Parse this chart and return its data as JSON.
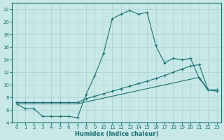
{
  "xlabel": "Humidex (Indice chaleur)",
  "ylabel": "",
  "xlim": [
    -0.5,
    23.5
  ],
  "ylim": [
    4,
    23
  ],
  "yticks": [
    4,
    6,
    8,
    10,
    12,
    14,
    16,
    18,
    20,
    22
  ],
  "xticks": [
    0,
    1,
    2,
    3,
    4,
    5,
    6,
    7,
    8,
    9,
    10,
    11,
    12,
    13,
    14,
    15,
    16,
    17,
    18,
    19,
    20,
    21,
    22,
    23
  ],
  "bg_color": "#c8e8e8",
  "grid_color": "#a8d0d0",
  "line_color": "#1a7070",
  "series1_x": [
    0,
    1,
    2,
    3,
    4,
    5,
    6,
    7,
    8,
    9,
    10,
    11,
    12,
    13,
    14,
    15,
    16,
    17,
    18,
    19,
    20,
    21,
    22,
    23
  ],
  "series1_y": [
    7.0,
    6.2,
    6.2,
    5.0,
    5.0,
    5.0,
    5.0,
    4.8,
    8.5,
    11.5,
    15.0,
    20.5,
    21.2,
    21.8,
    21.2,
    21.5,
    16.2,
    13.5,
    14.2,
    14.0,
    14.2,
    11.0,
    9.2,
    9.0
  ],
  "series2_x": [
    0,
    1,
    2,
    3,
    4,
    5,
    6,
    7,
    8,
    9,
    10,
    11,
    12,
    13,
    14,
    15,
    16,
    17,
    18,
    19,
    20,
    21,
    22,
    23
  ],
  "series2_y": [
    7.2,
    7.2,
    7.2,
    7.2,
    7.2,
    7.2,
    7.2,
    7.2,
    7.8,
    8.2,
    8.6,
    9.0,
    9.4,
    9.8,
    10.2,
    10.6,
    11.0,
    11.5,
    12.0,
    12.5,
    13.0,
    13.2,
    9.2,
    9.2
  ],
  "series3_x": [
    0,
    1,
    2,
    3,
    4,
    5,
    6,
    7,
    8,
    9,
    10,
    11,
    12,
    13,
    14,
    15,
    16,
    17,
    18,
    19,
    20,
    21,
    22,
    23
  ],
  "series3_y": [
    7.0,
    7.0,
    7.0,
    7.0,
    7.0,
    7.0,
    7.0,
    7.0,
    7.3,
    7.6,
    7.9,
    8.2,
    8.5,
    8.8,
    9.1,
    9.4,
    9.7,
    10.0,
    10.3,
    10.6,
    10.9,
    11.2,
    9.2,
    9.2
  ]
}
